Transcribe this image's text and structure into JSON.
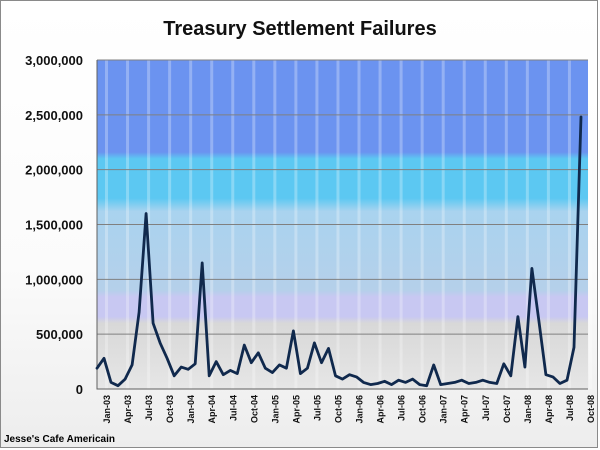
{
  "colors": {
    "line": "#10294d",
    "axis": "#808080"
  },
  "chart_data": {
    "type": "line",
    "title": "Treasury Settlement Failures",
    "credit": "Jesse's Cafe Americain",
    "ylim": [
      0,
      3000000
    ],
    "yticks": [
      0,
      500000,
      1000000,
      1500000,
      2000000,
      2500000,
      3000000
    ],
    "ytick_labels": [
      "0",
      "500,000",
      "1,000,000",
      "1,500,000",
      "2,000,000",
      "2,500,000",
      "3,000,000"
    ],
    "xlim": [
      "2003-01",
      "2008-11"
    ],
    "xtick_labels": [
      "Jan-03",
      "Apr-03",
      "Jul-03",
      "Oct-03",
      "Jan-04",
      "Apr-04",
      "Jul-04",
      "Oct-04",
      "Jan-05",
      "Apr-05",
      "Jul-05",
      "Oct-05",
      "Jan-06",
      "Apr-06",
      "Jul-06",
      "Oct-06",
      "Jan-07",
      "Apr-07",
      "Jul-07",
      "Oct-07",
      "Jan-08",
      "Apr-08",
      "Jul-08",
      "Oct-08"
    ],
    "grid": "horizontal",
    "series": [
      {
        "x": [
          "2003-01",
          "2003-02",
          "2003-03",
          "2003-04",
          "2003-05",
          "2003-06",
          "2003-07",
          "2003-08",
          "2003-09",
          "2003-10",
          "2003-11",
          "2003-12",
          "2004-01",
          "2004-02",
          "2004-03",
          "2004-04",
          "2004-05",
          "2004-06",
          "2004-07",
          "2004-08",
          "2004-09",
          "2004-10",
          "2004-11",
          "2004-12",
          "2005-01",
          "2005-02",
          "2005-03",
          "2005-04",
          "2005-05",
          "2005-06",
          "2005-07",
          "2005-08",
          "2005-09",
          "2005-10",
          "2005-11",
          "2005-12",
          "2006-01",
          "2006-02",
          "2006-03",
          "2006-04",
          "2006-05",
          "2006-06",
          "2006-07",
          "2006-08",
          "2006-09",
          "2006-10",
          "2006-11",
          "2006-12",
          "2007-01",
          "2007-02",
          "2007-03",
          "2007-04",
          "2007-05",
          "2007-06",
          "2007-07",
          "2007-08",
          "2007-09",
          "2007-10",
          "2007-11",
          "2007-12",
          "2008-01",
          "2008-02",
          "2008-03",
          "2008-04",
          "2008-05",
          "2008-06",
          "2008-07",
          "2008-08",
          "2008-09",
          "2008-10"
        ],
        "values": [
          190000,
          280000,
          60000,
          30000,
          90000,
          220000,
          700000,
          1600000,
          600000,
          420000,
          280000,
          120000,
          200000,
          180000,
          230000,
          1150000,
          120000,
          250000,
          130000,
          170000,
          140000,
          400000,
          240000,
          330000,
          190000,
          150000,
          220000,
          190000,
          530000,
          140000,
          190000,
          420000,
          240000,
          370000,
          120000,
          90000,
          130000,
          110000,
          60000,
          40000,
          50000,
          70000,
          40000,
          80000,
          60000,
          90000,
          40000,
          30000,
          220000,
          40000,
          50000,
          60000,
          80000,
          50000,
          60000,
          80000,
          60000,
          50000,
          230000,
          120000,
          660000,
          200000,
          1100000,
          620000,
          130000,
          110000,
          50000,
          80000,
          380000,
          2480000
        ]
      }
    ]
  }
}
